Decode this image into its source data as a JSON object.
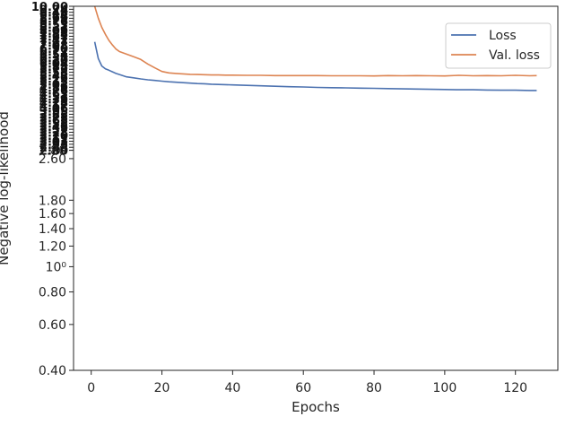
{
  "chart_data": {
    "type": "line",
    "xlabel": "Epochs",
    "ylabel": "Negative log-likelihood",
    "xlim": [
      -5,
      132
    ],
    "ylim": [
      0.4,
      10
    ],
    "y_scale": "log",
    "grid": false,
    "legend_position": "top-right",
    "x_ticks": [
      0,
      20,
      40,
      60,
      80,
      100,
      120
    ],
    "y_tick_labels": [
      {
        "value": 0.4,
        "label": "0.40"
      },
      {
        "value": 0.6,
        "label": "0.60"
      },
      {
        "value": 0.8,
        "label": "0.80"
      },
      {
        "value": 1.0,
        "label": "10⁰"
      },
      {
        "value": 1.2,
        "label": "1.20"
      },
      {
        "value": 1.4,
        "label": "1.40"
      },
      {
        "value": 1.6,
        "label": "1.60"
      },
      {
        "value": 1.8,
        "label": "1.80"
      },
      {
        "value": 2.6,
        "label": "2.60"
      },
      {
        "value": 2.8,
        "label": "2.80"
      }
    ],
    "crowded_tick_region": [
      2.8,
      10
    ],
    "series": [
      {
        "name": "Loss",
        "color": "#4c72b0",
        "x": [
          1,
          2,
          3,
          4,
          5,
          6,
          7,
          8,
          10,
          12,
          14,
          16,
          18,
          20,
          22,
          24,
          26,
          28,
          30,
          32,
          34,
          36,
          38,
          40,
          44,
          48,
          52,
          56,
          60,
          64,
          68,
          72,
          76,
          80,
          84,
          88,
          92,
          96,
          100,
          104,
          108,
          112,
          116,
          120,
          124,
          126
        ],
        "y": [
          7.3,
          6.3,
          5.9,
          5.75,
          5.68,
          5.6,
          5.52,
          5.47,
          5.36,
          5.31,
          5.26,
          5.22,
          5.19,
          5.16,
          5.13,
          5.11,
          5.09,
          5.07,
          5.05,
          5.04,
          5.02,
          5.01,
          5.0,
          4.99,
          4.97,
          4.95,
          4.93,
          4.91,
          4.9,
          4.88,
          4.87,
          4.86,
          4.85,
          4.84,
          4.83,
          4.82,
          4.81,
          4.8,
          4.79,
          4.78,
          4.78,
          4.77,
          4.76,
          4.76,
          4.75,
          4.75
        ]
      },
      {
        "name": "Val. loss",
        "color": "#dd8452",
        "x": [
          1,
          2,
          3,
          4,
          5,
          6,
          7,
          8,
          10,
          12,
          14,
          16,
          18,
          20,
          22,
          24,
          26,
          28,
          30,
          32,
          34,
          36,
          38,
          40,
          44,
          48,
          52,
          56,
          60,
          64,
          68,
          72,
          76,
          80,
          84,
          88,
          92,
          96,
          100,
          104,
          108,
          112,
          116,
          120,
          124,
          126
        ],
        "y": [
          10.0,
          9.0,
          8.3,
          7.8,
          7.4,
          7.1,
          6.85,
          6.7,
          6.55,
          6.4,
          6.25,
          6.0,
          5.8,
          5.62,
          5.55,
          5.52,
          5.5,
          5.48,
          5.47,
          5.46,
          5.45,
          5.45,
          5.44,
          5.44,
          5.43,
          5.43,
          5.42,
          5.42,
          5.42,
          5.42,
          5.41,
          5.41,
          5.41,
          5.4,
          5.42,
          5.41,
          5.42,
          5.41,
          5.4,
          5.43,
          5.41,
          5.42,
          5.41,
          5.43,
          5.41,
          5.42
        ]
      }
    ]
  }
}
